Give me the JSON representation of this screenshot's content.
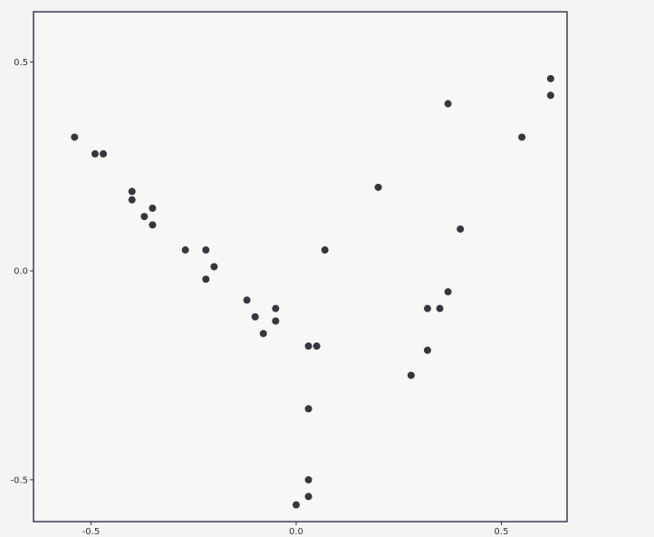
{
  "chart_data": {
    "type": "scatter",
    "title": "",
    "xlabel": "",
    "ylabel": "",
    "xlim": [
      -0.64,
      0.66
    ],
    "ylim": [
      -0.6,
      0.62
    ],
    "xticks": [
      {
        "value": -0.5,
        "label": "-0.5"
      },
      {
        "value": 0.0,
        "label": "0.0"
      },
      {
        "value": 0.5,
        "label": "0.5"
      }
    ],
    "yticks": [
      {
        "value": 0.5,
        "label": "0.5"
      },
      {
        "value": 0.0,
        "label": "0.0"
      },
      {
        "value": -0.5,
        "label": "-0.5"
      }
    ],
    "grid": false,
    "marker_color": "#3a3340",
    "axes_color": "#2b2f4a",
    "points": [
      {
        "x": -0.54,
        "y": 0.32
      },
      {
        "x": -0.49,
        "y": 0.28
      },
      {
        "x": -0.47,
        "y": 0.28
      },
      {
        "x": -0.4,
        "y": 0.19
      },
      {
        "x": -0.4,
        "y": 0.17
      },
      {
        "x": -0.37,
        "y": 0.13
      },
      {
        "x": -0.35,
        "y": 0.15
      },
      {
        "x": -0.35,
        "y": 0.11
      },
      {
        "x": -0.27,
        "y": 0.05
      },
      {
        "x": -0.22,
        "y": 0.05
      },
      {
        "x": -0.22,
        "y": -0.02
      },
      {
        "x": -0.2,
        "y": 0.01
      },
      {
        "x": -0.12,
        "y": -0.07
      },
      {
        "x": -0.1,
        "y": -0.11
      },
      {
        "x": -0.08,
        "y": -0.15
      },
      {
        "x": -0.05,
        "y": -0.09
      },
      {
        "x": -0.05,
        "y": -0.12
      },
      {
        "x": 0.0,
        "y": -0.56
      },
      {
        "x": 0.03,
        "y": -0.18
      },
      {
        "x": 0.05,
        "y": -0.18
      },
      {
        "x": 0.03,
        "y": -0.33
      },
      {
        "x": 0.03,
        "y": -0.5
      },
      {
        "x": 0.03,
        "y": -0.54
      },
      {
        "x": 0.07,
        "y": 0.05
      },
      {
        "x": 0.2,
        "y": 0.2
      },
      {
        "x": 0.28,
        "y": -0.25
      },
      {
        "x": 0.32,
        "y": -0.09
      },
      {
        "x": 0.32,
        "y": -0.19
      },
      {
        "x": 0.35,
        "y": -0.09
      },
      {
        "x": 0.37,
        "y": 0.4
      },
      {
        "x": 0.37,
        "y": -0.05
      },
      {
        "x": 0.4,
        "y": 0.1
      },
      {
        "x": 0.55,
        "y": 0.32
      },
      {
        "x": 0.62,
        "y": 0.46
      },
      {
        "x": 0.62,
        "y": 0.42
      }
    ]
  }
}
